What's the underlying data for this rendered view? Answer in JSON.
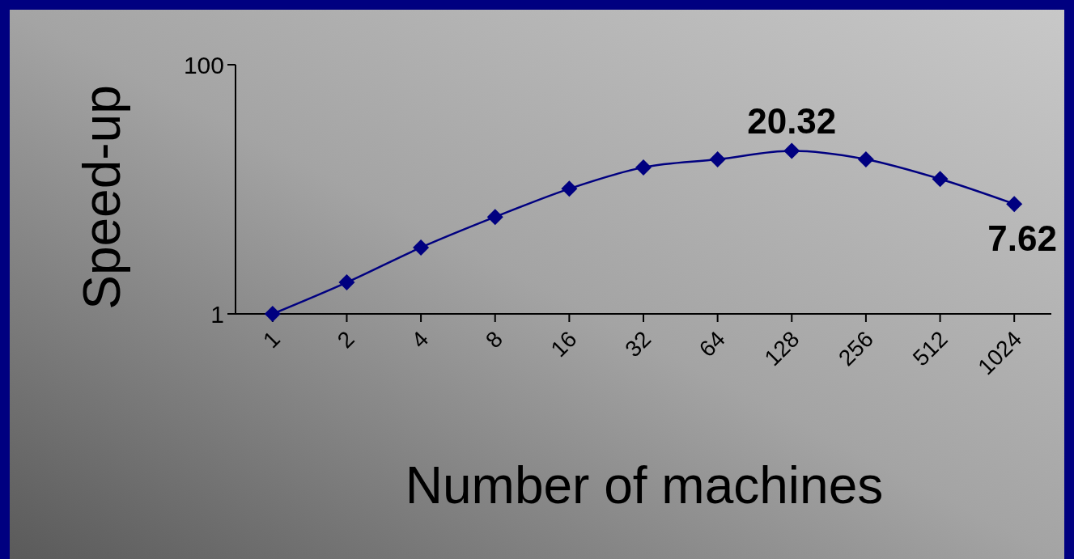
{
  "chart_data": {
    "type": "line",
    "xlabel": "Number of machines",
    "ylabel": "Speed-up",
    "categories": [
      "1",
      "2",
      "4",
      "8",
      "16",
      "32",
      "64",
      "128",
      "256",
      "512",
      "1024"
    ],
    "series": [
      {
        "color": "#000080",
        "values": [
          1,
          1.79,
          3.41,
          6.0,
          10.1,
          15.0,
          17.4,
          20.32,
          17.4,
          12.1,
          7.62
        ],
        "value_labels": [
          null,
          null,
          null,
          null,
          null,
          null,
          null,
          "20.32",
          null,
          null,
          "7.62"
        ]
      }
    ],
    "log": true,
    "ylim": [
      1,
      100
    ],
    "yticks": [
      1,
      100
    ],
    "grid": false,
    "marker": "diamond",
    "line_style": "solid"
  }
}
